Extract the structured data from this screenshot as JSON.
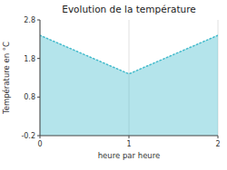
{
  "chart_data": {
    "type": "area",
    "title": "Evolution de la température",
    "x_label": "heure par heure",
    "y_label": "Température en °C",
    "x": [
      0,
      1,
      2
    ],
    "values": [
      2.4,
      1.4,
      2.4
    ],
    "xlim": [
      0,
      2
    ],
    "ylim": [
      -0.2,
      2.8
    ],
    "xticks": [
      0,
      1,
      2
    ],
    "yticks": [
      -0.2,
      0.8,
      1.8,
      2.8
    ],
    "color": "#44bbcc",
    "line_style": "dotted",
    "grid": true
  }
}
